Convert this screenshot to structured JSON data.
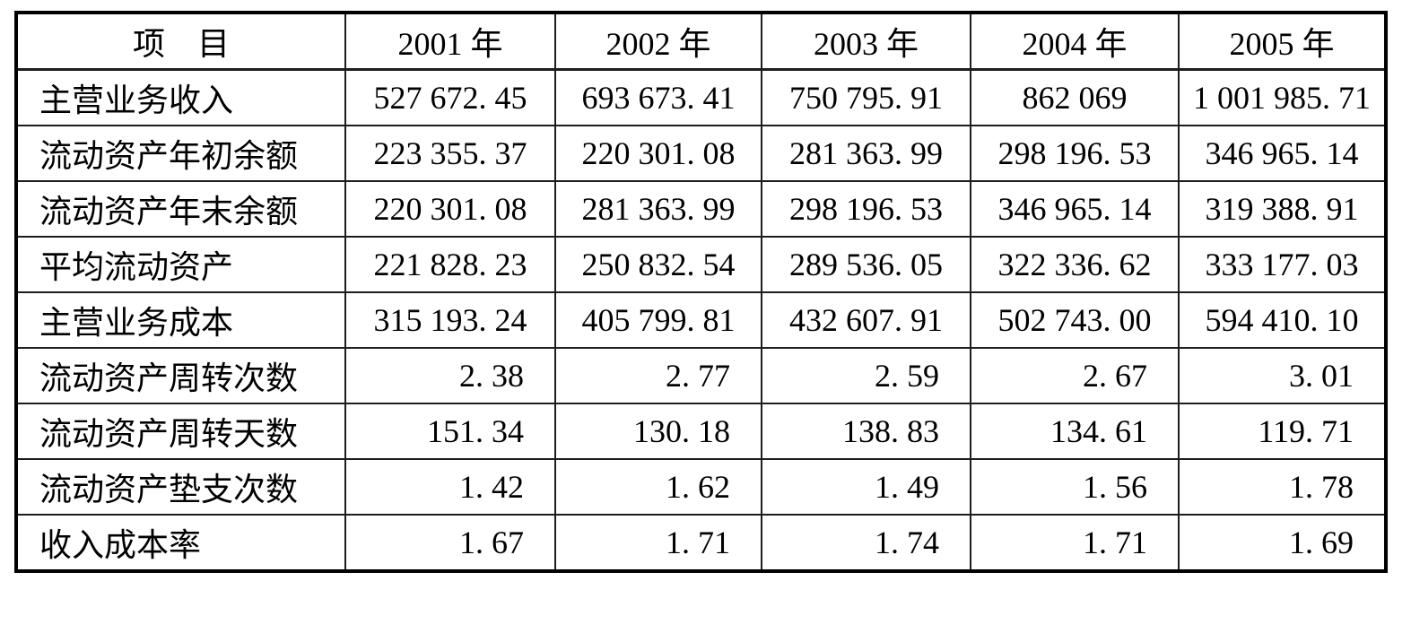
{
  "colors": {
    "background": "#ffffff",
    "text": "#000000",
    "border": "#000000"
  },
  "table": {
    "columns": [
      "项　目",
      "2001 年",
      "2002 年",
      "2003 年",
      "2004 年",
      "2005 年"
    ],
    "rows": [
      {
        "label": "主营业务收入",
        "values": [
          "527 672. 45",
          "693 673. 41",
          "750 795. 91",
          "862 069",
          "1 001 985. 71"
        ],
        "align": "center"
      },
      {
        "label": "流动资产年初余额",
        "values": [
          "223 355. 37",
          "220 301. 08",
          "281 363. 99",
          "298 196. 53",
          "346 965. 14"
        ],
        "align": "center"
      },
      {
        "label": "流动资产年末余额",
        "values": [
          "220 301. 08",
          "281 363. 99",
          "298 196. 53",
          "346 965. 14",
          "319 388. 91"
        ],
        "align": "center"
      },
      {
        "label": "平均流动资产",
        "values": [
          "221 828. 23",
          "250 832. 54",
          "289 536. 05",
          "322 336. 62",
          "333 177. 03"
        ],
        "align": "center"
      },
      {
        "label": "主营业务成本",
        "values": [
          "315 193. 24",
          "405 799. 81",
          "432 607. 91",
          "502 743. 00",
          "594 410. 10"
        ],
        "align": "center"
      },
      {
        "label": "流动资产周转次数",
        "values": [
          "2. 38",
          "2. 77",
          "2. 59",
          "2. 67",
          "3. 01"
        ],
        "align": "right"
      },
      {
        "label": "流动资产周转天数",
        "values": [
          "151. 34",
          "130. 18",
          "138. 83",
          "134. 61",
          "119. 71"
        ],
        "align": "right"
      },
      {
        "label": "流动资产垫支次数",
        "values": [
          "1. 42",
          "1. 62",
          "1. 49",
          "1. 56",
          "1. 78"
        ],
        "align": "right"
      },
      {
        "label": "收入成本率",
        "values": [
          "1. 67",
          "1. 71",
          "1. 74",
          "1. 71",
          "1. 69"
        ],
        "align": "right"
      }
    ]
  }
}
